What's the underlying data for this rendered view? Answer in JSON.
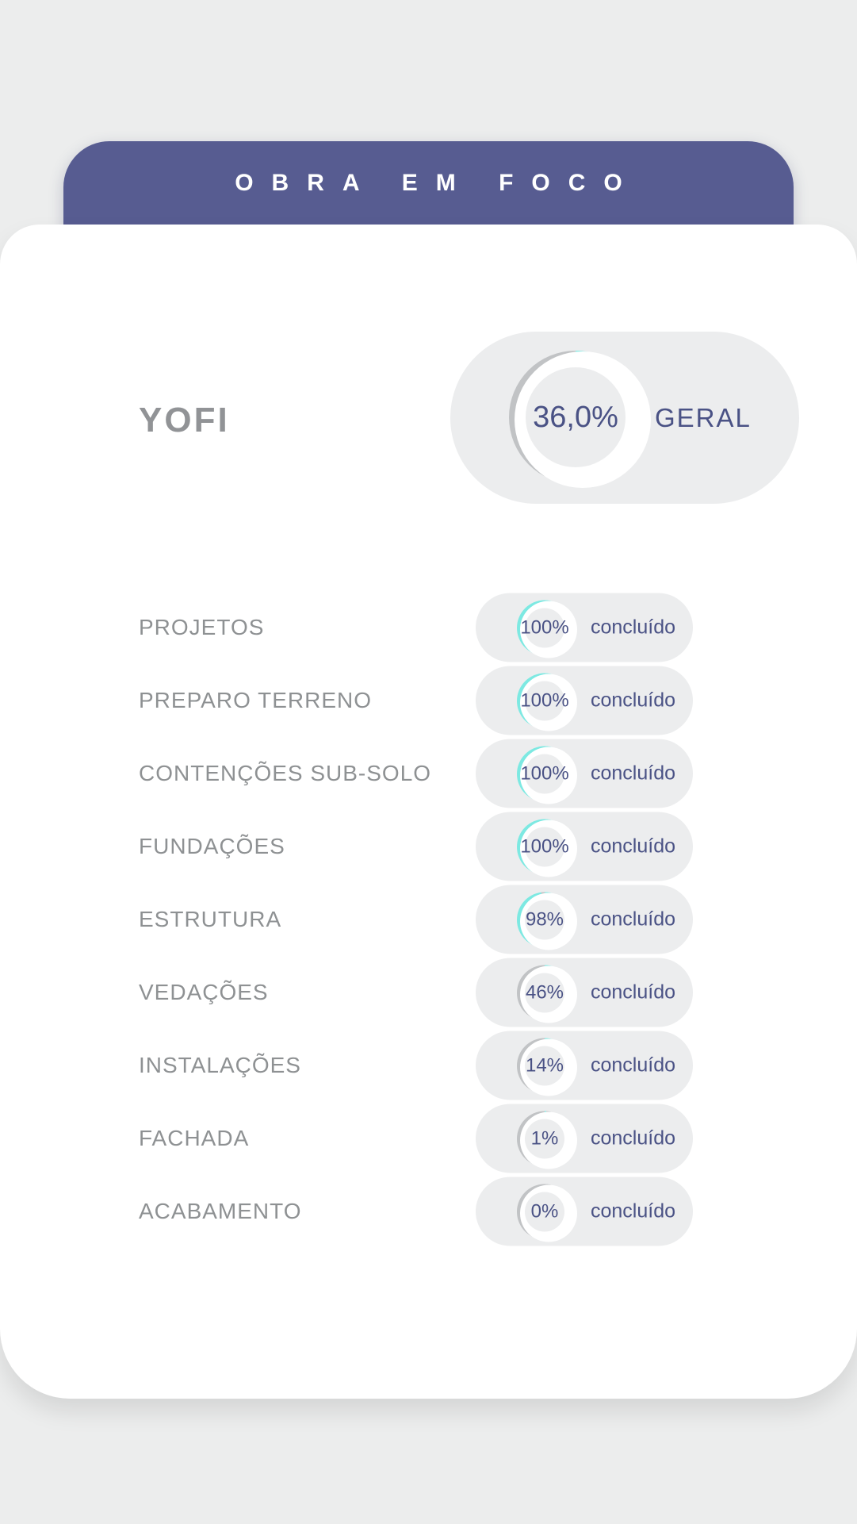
{
  "header": {
    "title": "OBRA EM FOCO"
  },
  "project": {
    "name": "YOFI",
    "overall_label": "GERAL",
    "overall_percent_label": "36,0%",
    "overall_percent_value": 36.0
  },
  "phases": [
    {
      "label": "PROJETOS",
      "percent": 100,
      "percent_label": "100%",
      "status": "concluído"
    },
    {
      "label": "PREPARO TERRENO",
      "percent": 100,
      "percent_label": "100%",
      "status": "concluído"
    },
    {
      "label": "CONTENÇÕES SUB-SOLO",
      "percent": 100,
      "percent_label": "100%",
      "status": "concluído"
    },
    {
      "label": "FUNDAÇÕES",
      "percent": 100,
      "percent_label": "100%",
      "status": "concluído"
    },
    {
      "label": "ESTRUTURA",
      "percent": 98,
      "percent_label": "98%",
      "status": "concluído"
    },
    {
      "label": "VEDAÇÕES",
      "percent": 46,
      "percent_label": "46%",
      "status": "concluído"
    },
    {
      "label": "INSTALAÇÕES",
      "percent": 14,
      "percent_label": "14%",
      "status": "concluído"
    },
    {
      "label": "FACHADA",
      "percent": 1,
      "percent_label": "1%",
      "status": "concluído"
    },
    {
      "label": "ACABAMENTO",
      "percent": 0,
      "percent_label": "0%",
      "status": "concluído"
    }
  ],
  "colors": {
    "page_bg": "#ECEDED",
    "card_bg": "#FFFFFF",
    "header_bg": "#575C91",
    "pill_bg": "#ECEDEE",
    "accent_cyan": "#7DE9E2",
    "track_gray": "#C1C3C5",
    "text_blue": "#4A5285",
    "text_gray": "#8E9193"
  },
  "chart_data": {
    "type": "pie",
    "title": "OBRA EM FOCO",
    "subtitle": "YOFI",
    "legend_position": "none",
    "series": [
      {
        "name": "GERAL",
        "value_pct": 36.0
      },
      {
        "name": "PROJETOS",
        "value_pct": 100
      },
      {
        "name": "PREPARO TERRENO",
        "value_pct": 100
      },
      {
        "name": "CONTENÇÕES SUB-SOLO",
        "value_pct": 100
      },
      {
        "name": "FUNDAÇÕES",
        "value_pct": 100
      },
      {
        "name": "ESTRUTURA",
        "value_pct": 98
      },
      {
        "name": "VEDAÇÕES",
        "value_pct": 46
      },
      {
        "name": "INSTALAÇÕES",
        "value_pct": 14
      },
      {
        "name": "FACHADA",
        "value_pct": 1
      },
      {
        "name": "ACABAMENTO",
        "value_pct": 0
      }
    ]
  }
}
